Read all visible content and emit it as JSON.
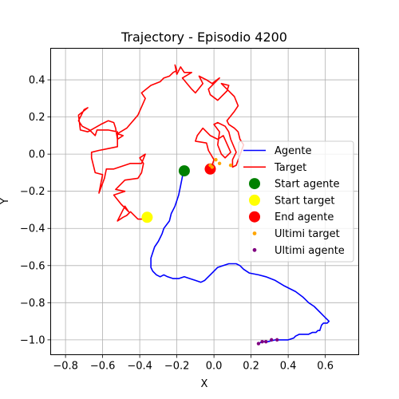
{
  "chart_data": {
    "type": "line",
    "title": "Trajectory - Episodio 4200",
    "xlabel": "X",
    "ylabel": "Y",
    "xlim": [
      -0.88,
      0.78
    ],
    "ylim": [
      -1.08,
      0.57
    ],
    "x_ticks": [
      -0.8,
      -0.6,
      -0.4,
      -0.2,
      0.0,
      0.2,
      0.4,
      0.6
    ],
    "x_tick_labels": [
      "−0.8",
      "−0.6",
      "−0.4",
      "−0.2",
      "0.0",
      "0.2",
      "0.4",
      "0.6"
    ],
    "y_ticks": [
      0.4,
      0.2,
      0.0,
      -0.2,
      -0.4,
      -0.6,
      -0.8,
      -1.0
    ],
    "y_tick_labels": [
      "0.4",
      "0.2",
      "0.0",
      "−0.2",
      "−0.4",
      "−0.6",
      "−0.8",
      "−1.0"
    ],
    "grid": true,
    "legend_position": "right",
    "series": [
      {
        "name": "Agente",
        "kind": "line",
        "color": "#0000ff",
        "points": [
          [
            -0.17,
            -0.09
          ],
          [
            -0.17,
            -0.12
          ],
          [
            -0.18,
            -0.17
          ],
          [
            -0.19,
            -0.22
          ],
          [
            -0.21,
            -0.28
          ],
          [
            -0.23,
            -0.32
          ],
          [
            -0.24,
            -0.36
          ],
          [
            -0.27,
            -0.4
          ],
          [
            -0.28,
            -0.43
          ],
          [
            -0.29,
            -0.45
          ],
          [
            -0.3,
            -0.47
          ],
          [
            -0.32,
            -0.5
          ],
          [
            -0.33,
            -0.53
          ],
          [
            -0.34,
            -0.56
          ],
          [
            -0.34,
            -0.59
          ],
          [
            -0.34,
            -0.61
          ],
          [
            -0.33,
            -0.63
          ],
          [
            -0.31,
            -0.65
          ],
          [
            -0.29,
            -0.66
          ],
          [
            -0.27,
            -0.65
          ],
          [
            -0.25,
            -0.66
          ],
          [
            -0.22,
            -0.67
          ],
          [
            -0.19,
            -0.67
          ],
          [
            -0.16,
            -0.66
          ],
          [
            -0.13,
            -0.67
          ],
          [
            -0.1,
            -0.68
          ],
          [
            -0.07,
            -0.69
          ],
          [
            -0.05,
            -0.68
          ],
          [
            -0.04,
            -0.67
          ],
          [
            -0.02,
            -0.65
          ],
          [
            0.0,
            -0.63
          ],
          [
            0.02,
            -0.61
          ],
          [
            0.05,
            -0.6
          ],
          [
            0.08,
            -0.59
          ],
          [
            0.12,
            -0.59
          ],
          [
            0.14,
            -0.6
          ],
          [
            0.16,
            -0.62
          ],
          [
            0.19,
            -0.64
          ],
          [
            0.24,
            -0.65
          ],
          [
            0.28,
            -0.66
          ],
          [
            0.33,
            -0.68
          ],
          [
            0.38,
            -0.71
          ],
          [
            0.44,
            -0.74
          ],
          [
            0.48,
            -0.77
          ],
          [
            0.51,
            -0.8
          ],
          [
            0.54,
            -0.82
          ],
          [
            0.57,
            -0.85
          ],
          [
            0.6,
            -0.88
          ],
          [
            0.61,
            -0.89
          ],
          [
            0.62,
            -0.9
          ],
          [
            0.61,
            -0.91
          ],
          [
            0.59,
            -0.91
          ],
          [
            0.58,
            -0.92
          ],
          [
            0.57,
            -0.95
          ],
          [
            0.56,
            -0.95
          ],
          [
            0.55,
            -0.96
          ],
          [
            0.53,
            -0.96
          ],
          [
            0.51,
            -0.97
          ],
          [
            0.46,
            -0.97
          ],
          [
            0.44,
            -0.98
          ],
          [
            0.43,
            -0.99
          ],
          [
            0.4,
            -1.0
          ],
          [
            0.36,
            -1.0
          ],
          [
            0.33,
            -1.0
          ],
          [
            0.29,
            -1.01
          ],
          [
            0.26,
            -1.01
          ],
          [
            0.24,
            -1.02
          ]
        ]
      },
      {
        "name": "Target",
        "kind": "line",
        "color": "#ff0000",
        "points": [
          [
            -0.36,
            -0.35
          ],
          [
            -0.41,
            -0.35
          ],
          [
            -0.45,
            -0.31
          ],
          [
            -0.47,
            -0.33
          ],
          [
            -0.49,
            -0.34
          ],
          [
            -0.52,
            -0.36
          ],
          [
            -0.48,
            -0.28
          ],
          [
            -0.46,
            -0.31
          ],
          [
            -0.5,
            -0.27
          ],
          [
            -0.54,
            -0.22
          ],
          [
            -0.48,
            -0.2
          ],
          [
            -0.53,
            -0.19
          ],
          [
            -0.48,
            -0.14
          ],
          [
            -0.41,
            -0.13
          ],
          [
            -0.39,
            -0.1
          ],
          [
            -0.38,
            -0.05
          ],
          [
            -0.4,
            -0.02
          ],
          [
            -0.37,
            0.0
          ],
          [
            -0.39,
            -0.05
          ],
          [
            -0.45,
            -0.05
          ],
          [
            -0.54,
            -0.08
          ],
          [
            -0.58,
            -0.08
          ],
          [
            -0.59,
            -0.13
          ],
          [
            -0.62,
            -0.21
          ],
          [
            -0.6,
            -0.11
          ],
          [
            -0.64,
            -0.1
          ],
          [
            -0.66,
            -0.02
          ],
          [
            -0.66,
            0.01
          ],
          [
            -0.62,
            0.02
          ],
          [
            -0.57,
            0.03
          ],
          [
            -0.52,
            0.04
          ],
          [
            -0.52,
            0.09
          ],
          [
            -0.52,
            0.12
          ],
          [
            -0.57,
            0.13
          ],
          [
            -0.63,
            0.13
          ],
          [
            -0.64,
            0.1
          ],
          [
            -0.67,
            0.13
          ],
          [
            -0.71,
            0.15
          ],
          [
            -0.73,
            0.18
          ],
          [
            -0.7,
            0.24
          ],
          [
            -0.68,
            0.25
          ],
          [
            -0.73,
            0.21
          ],
          [
            -0.72,
            0.13
          ],
          [
            -0.68,
            0.12
          ],
          [
            -0.61,
            0.16
          ],
          [
            -0.57,
            0.18
          ],
          [
            -0.54,
            0.17
          ],
          [
            -0.53,
            0.14
          ],
          [
            -0.52,
            0.08
          ],
          [
            -0.49,
            0.1
          ],
          [
            -0.52,
            0.11
          ],
          [
            -0.47,
            0.14
          ],
          [
            -0.41,
            0.21
          ],
          [
            -0.37,
            0.3
          ],
          [
            -0.39,
            0.33
          ],
          [
            -0.34,
            0.37
          ],
          [
            -0.29,
            0.39
          ],
          [
            -0.27,
            0.41
          ],
          [
            -0.24,
            0.42
          ],
          [
            -0.22,
            0.44
          ],
          [
            -0.2,
            0.45
          ],
          [
            -0.21,
            0.48
          ],
          [
            -0.2,
            0.43
          ],
          [
            -0.18,
            0.47
          ],
          [
            -0.16,
            0.44
          ],
          [
            -0.12,
            0.44
          ],
          [
            -0.17,
            0.41
          ],
          [
            -0.12,
            0.35
          ],
          [
            -0.1,
            0.33
          ],
          [
            -0.06,
            0.38
          ],
          [
            -0.08,
            0.42
          ],
          [
            -0.04,
            0.4
          ],
          [
            -0.01,
            0.38
          ],
          [
            0.03,
            0.41
          ],
          [
            -0.03,
            0.35
          ],
          [
            -0.02,
            0.32
          ],
          [
            0.02,
            0.29
          ],
          [
            0.07,
            0.34
          ],
          [
            0.08,
            0.37
          ],
          [
            0.04,
            0.38
          ],
          [
            0.06,
            0.36
          ],
          [
            0.11,
            0.31
          ],
          [
            0.13,
            0.26
          ],
          [
            0.11,
            0.23
          ],
          [
            0.07,
            0.18
          ],
          [
            0.08,
            0.16
          ],
          [
            0.11,
            0.14
          ],
          [
            0.13,
            0.12
          ],
          [
            0.14,
            0.08
          ],
          [
            0.16,
            0.05
          ],
          [
            0.12,
            -0.06
          ],
          [
            0.1,
            -0.07
          ],
          [
            0.1,
            -0.03
          ],
          [
            0.12,
            0.01
          ],
          [
            0.09,
            0.08
          ],
          [
            0.08,
            0.12
          ],
          [
            0.06,
            0.15
          ],
          [
            0.02,
            0.17
          ],
          [
            0.0,
            0.16
          ],
          [
            0.03,
            0.12
          ],
          [
            0.02,
            0.05
          ],
          [
            0.04,
            0.0
          ],
          [
            0.06,
            -0.02
          ],
          [
            0.09,
            0.01
          ],
          [
            0.05,
            0.1
          ],
          [
            0.02,
            0.08
          ],
          [
            -0.02,
            0.1
          ],
          [
            -0.06,
            0.14
          ],
          [
            -0.09,
            0.1
          ],
          [
            -0.1,
            0.07
          ],
          [
            -0.04,
            0.06
          ],
          [
            -0.03,
            0.02
          ],
          [
            0.0,
            -0.03
          ],
          [
            -0.01,
            -0.06
          ]
        ]
      },
      {
        "name": "Start agente",
        "kind": "marker",
        "color": "#008000",
        "points": [
          [
            -0.16,
            -0.09
          ]
        ]
      },
      {
        "name": "Start target",
        "kind": "marker",
        "color": "#ffff00",
        "points": [
          [
            -0.36,
            -0.34
          ]
        ]
      },
      {
        "name": "End agente",
        "kind": "marker",
        "color": "#ff0000",
        "points": [
          [
            -0.02,
            -0.08
          ]
        ]
      },
      {
        "name": "Ultimi target",
        "kind": "scatter",
        "color": "#ffa500",
        "points": [
          [
            0.09,
            -0.06
          ],
          [
            0.03,
            -0.05
          ],
          [
            0.01,
            -0.03
          ],
          [
            -0.01,
            -0.07
          ],
          [
            -0.02,
            -0.06
          ]
        ]
      },
      {
        "name": "Ultimi agente",
        "kind": "scatter",
        "color": "#800080",
        "points": [
          [
            0.24,
            -1.02
          ],
          [
            0.26,
            -1.01
          ],
          [
            0.28,
            -1.01
          ],
          [
            0.31,
            -1.0
          ],
          [
            0.34,
            -1.0
          ]
        ]
      }
    ]
  }
}
